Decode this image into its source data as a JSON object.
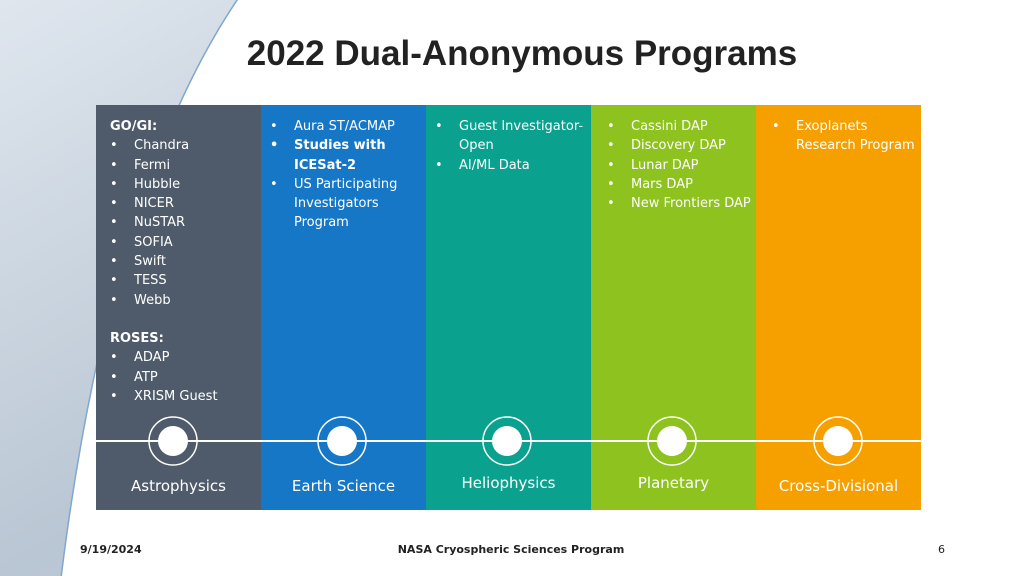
{
  "title": "2022 Dual-Anonymous Programs",
  "columns": [
    {
      "groups": [
        {
          "heading": "GO/GI:",
          "items": [
            "Chandra",
            "Fermi",
            "Hubble",
            "NICER",
            "NuSTAR",
            "SOFIA",
            "Swift",
            "TESS",
            "Webb"
          ]
        },
        {
          "heading": "ROSES:",
          "items": [
            "ADAP",
            "ATP",
            "XRISM Guest"
          ]
        }
      ],
      "label": "Astrophysics"
    },
    {
      "items": [
        "Aura ST/ACMAP",
        "Studies with ICESat-2",
        "US Participating Investigators Program"
      ],
      "label": "Earth Science"
    },
    {
      "items": [
        "Guest Investigator-Open",
        "AI/ML Data"
      ],
      "label": "Heliophysics"
    },
    {
      "items": [
        "Cassini DAP",
        "Discovery DAP",
        "Lunar DAP",
        "Mars DAP",
        "New Frontiers DAP"
      ],
      "label": "Planetary"
    },
    {
      "items": [
        "Exoplanets Research Program"
      ],
      "label": "Cross-Divisional"
    }
  ],
  "footer": {
    "date": "9/19/2024",
    "center": "NASA Cryospheric Sciences Program",
    "page": "6"
  }
}
